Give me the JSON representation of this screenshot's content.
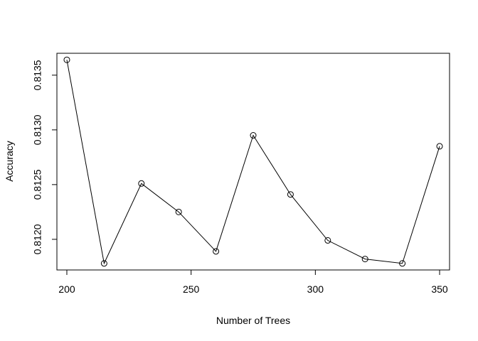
{
  "chart_data": {
    "type": "line",
    "title": "",
    "xlabel": "Number of Trees",
    "ylabel": "Accuracy",
    "x": [
      200,
      215,
      230,
      245,
      260,
      275,
      290,
      305,
      320,
      335,
      350
    ],
    "series": [
      {
        "values": [
          0.81364,
          0.81178,
          0.81251,
          0.81225,
          0.81189,
          0.81295,
          0.81241,
          0.81199,
          0.81182,
          0.81178,
          0.81285
        ]
      }
    ],
    "xticks": [
      200,
      250,
      300,
      350
    ],
    "xtick_labels": [
      "200",
      "250",
      "300",
      "350"
    ],
    "yticks": [
      0.812,
      0.8125,
      0.813,
      0.8135
    ],
    "ytick_labels": [
      "0.8120",
      "0.8125",
      "0.8130",
      "0.8135"
    ],
    "xlim": [
      196,
      354
    ],
    "ylim": [
      0.81172,
      0.8137
    ],
    "grid": false,
    "line_color": "#000000",
    "marker": "open-circle"
  }
}
